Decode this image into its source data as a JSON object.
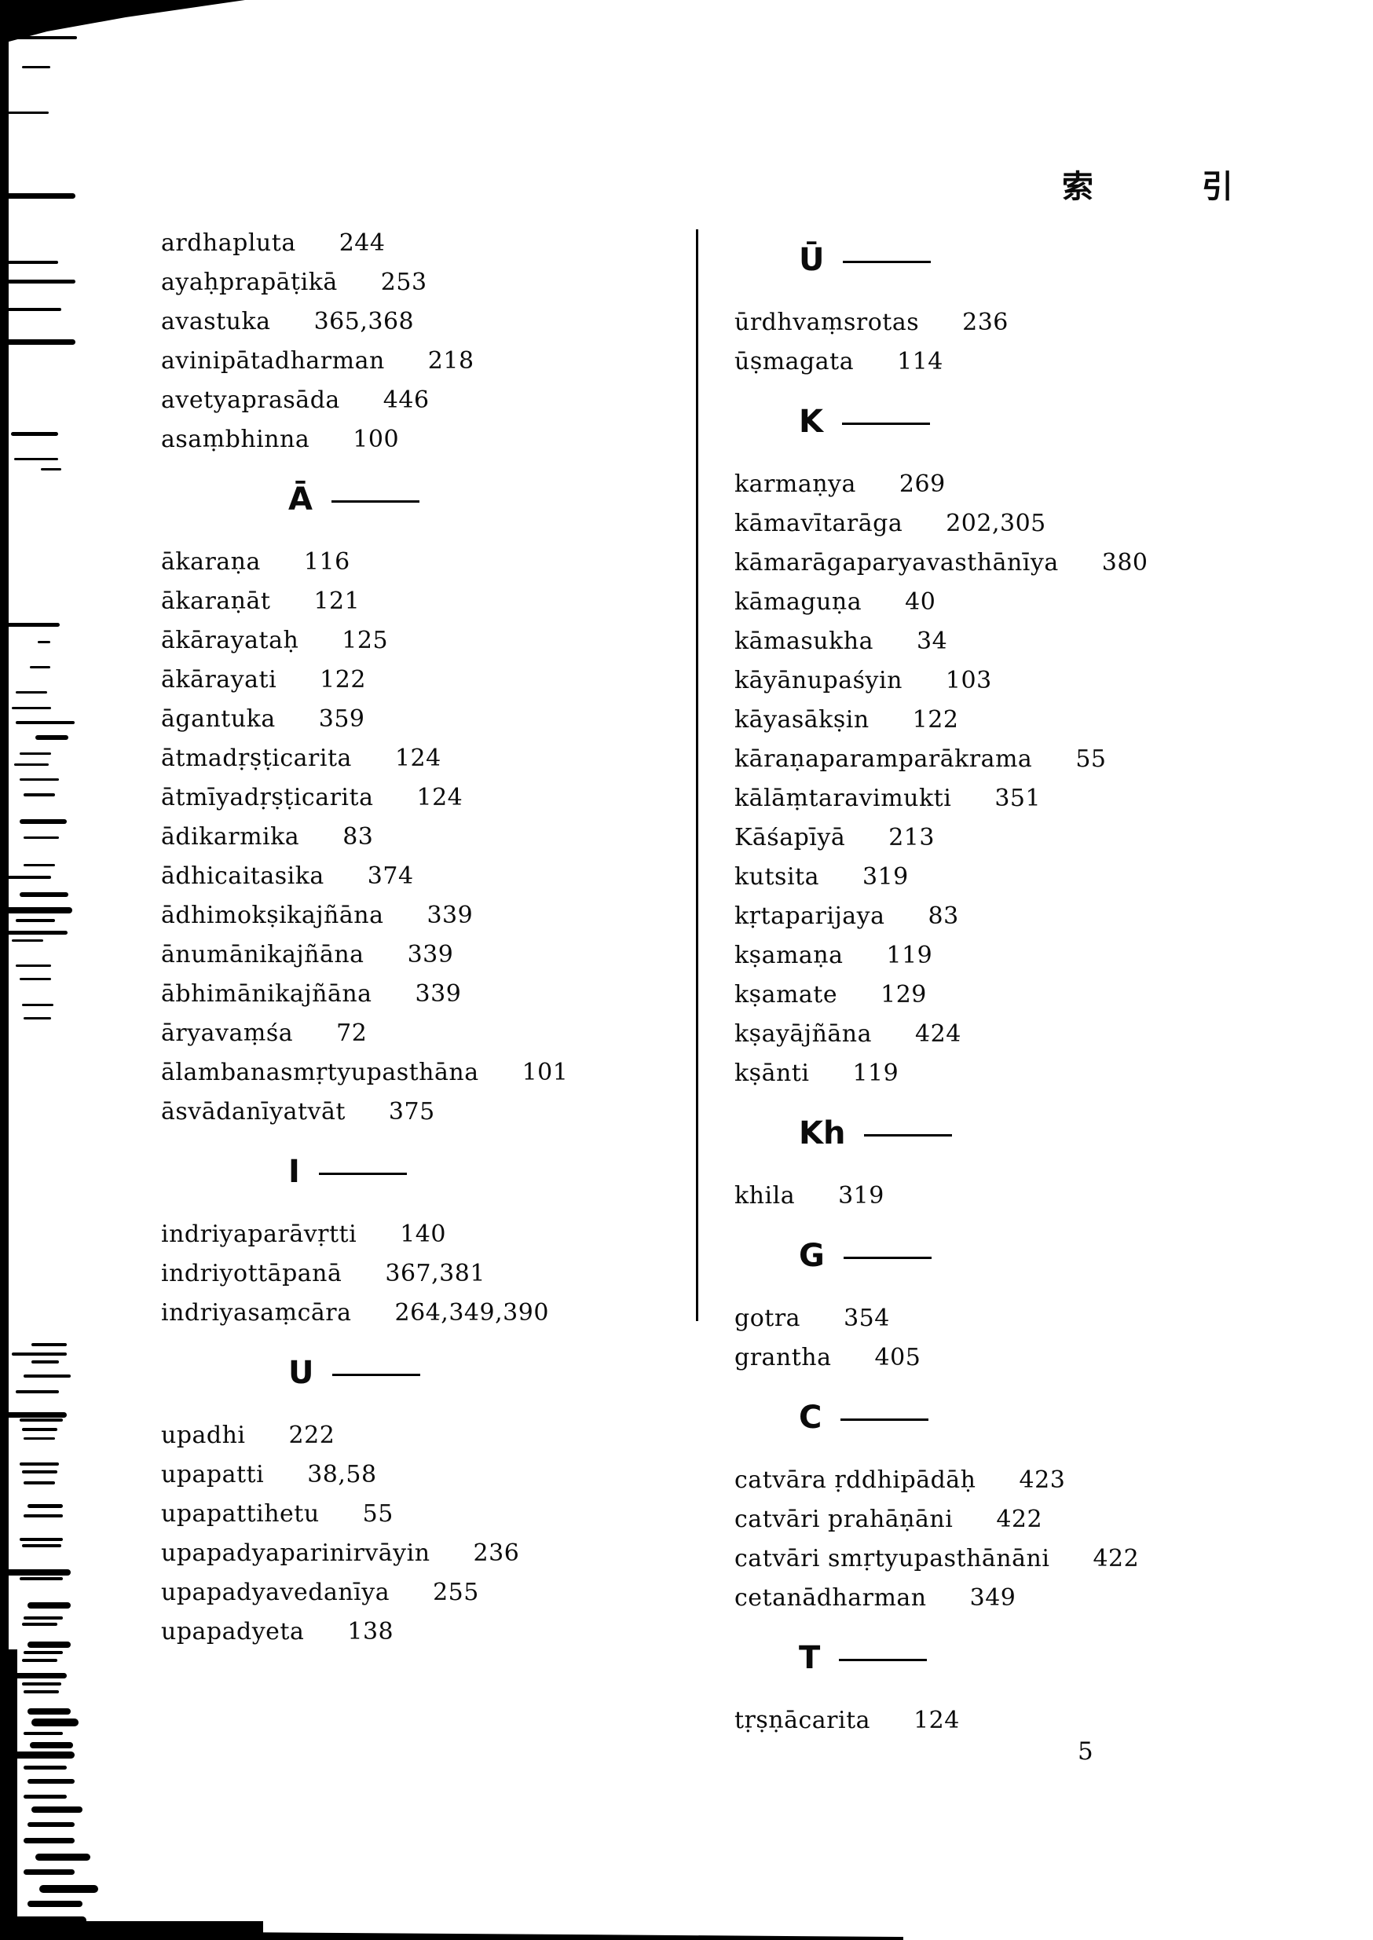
{
  "page": {
    "header_title": "索 引",
    "page_number": "5"
  },
  "index": {
    "left_sections": [
      {
        "letter": "",
        "entries": [
          {
            "term": "ardhapluta",
            "pages": "244"
          },
          {
            "term": "ayaḥprapāṭikā",
            "pages": "253"
          },
          {
            "term": "avastuka",
            "pages": "365,368"
          },
          {
            "term": "avinipātadharman",
            "pages": "218"
          },
          {
            "term": "avetyaprasāda",
            "pages": "446"
          },
          {
            "term": "asaṃbhinna",
            "pages": "100"
          }
        ]
      },
      {
        "letter": "Ā",
        "entries": [
          {
            "term": "ākaraṇa",
            "pages": "116"
          },
          {
            "term": "ākaraṇāt",
            "pages": "121"
          },
          {
            "term": "ākārayataḥ",
            "pages": "125"
          },
          {
            "term": "ākārayati",
            "pages": "122"
          },
          {
            "term": "āgantuka",
            "pages": "359"
          },
          {
            "term": "ātmadṛṣṭicarita",
            "pages": "124"
          },
          {
            "term": "ātmīyadṛṣṭicarita",
            "pages": "124"
          },
          {
            "term": "ādikarmika",
            "pages": "83"
          },
          {
            "term": "ādhicaitasika",
            "pages": "374"
          },
          {
            "term": "ādhimokṣikajñāna",
            "pages": "339"
          },
          {
            "term": "ānumānikajñāna",
            "pages": "339"
          },
          {
            "term": "ābhimānikajñāna",
            "pages": "339"
          },
          {
            "term": "āryavaṃśa",
            "pages": "72"
          },
          {
            "term": "ālambanasmṛtyupasthāna",
            "pages": "101"
          },
          {
            "term": "āsvādanīyatvāt",
            "pages": "375"
          }
        ]
      },
      {
        "letter": "I",
        "entries": [
          {
            "term": "indriyaparāvṛtti",
            "pages": "140"
          },
          {
            "term": "indriyottāpanā",
            "pages": "367,381"
          },
          {
            "term": "indriyasaṃcāra",
            "pages": "264,349,390"
          }
        ]
      },
      {
        "letter": "U",
        "entries": [
          {
            "term": "upadhi",
            "pages": "222"
          },
          {
            "term": "upapatti",
            "pages": "38,58"
          },
          {
            "term": "upapattihetu",
            "pages": "55"
          },
          {
            "term": "upapadyaparinirvāyin",
            "pages": "236"
          },
          {
            "term": "upapadyavedanīya",
            "pages": "255"
          },
          {
            "term": "upapadyeta",
            "pages": "138"
          }
        ]
      }
    ],
    "right_sections": [
      {
        "letter": "Ū",
        "entries": [
          {
            "term": "ūrdhvaṃsrotas",
            "pages": "236"
          },
          {
            "term": "ūṣmagata",
            "pages": "114"
          }
        ]
      },
      {
        "letter": "K",
        "entries": [
          {
            "term": "karmaṇya",
            "pages": "269"
          },
          {
            "term": "kāmavītarāga",
            "pages": "202,305"
          },
          {
            "term": "kāmarāgaparyavasthānīya",
            "pages": "380"
          },
          {
            "term": "kāmaguṇa",
            "pages": "40"
          },
          {
            "term": "kāmasukha",
            "pages": "34"
          },
          {
            "term": "kāyānupaśyin",
            "pages": "103"
          },
          {
            "term": "kāyasākṣin",
            "pages": "122"
          },
          {
            "term": "kāraṇaparamparākrama",
            "pages": "55"
          },
          {
            "term": "kālāṃtaravimukti",
            "pages": "351"
          },
          {
            "term": "Kāśapīyā",
            "pages": "213"
          },
          {
            "term": "kutsita",
            "pages": "319"
          },
          {
            "term": "kṛtaparijaya",
            "pages": "83"
          },
          {
            "term": "kṣamaṇa",
            "pages": "119"
          },
          {
            "term": "kṣamate",
            "pages": "129"
          },
          {
            "term": "kṣayājñāna",
            "pages": "424"
          },
          {
            "term": "kṣānti",
            "pages": "119"
          }
        ]
      },
      {
        "letter": "Kh",
        "entries": [
          {
            "term": "khila",
            "pages": "319"
          }
        ]
      },
      {
        "letter": "G",
        "entries": [
          {
            "term": "gotra",
            "pages": "354"
          },
          {
            "term": "grantha",
            "pages": "405"
          }
        ]
      },
      {
        "letter": "C",
        "entries": [
          {
            "term": "catvāra ṛddhipādāḥ",
            "pages": "423"
          },
          {
            "term": "catvāri prahāṇāni",
            "pages": "422"
          },
          {
            "term": "catvāri smṛtyupasthānāni",
            "pages": "422"
          },
          {
            "term": "cetanādharman",
            "pages": "349"
          }
        ]
      },
      {
        "letter": "T",
        "entries": [
          {
            "term": "tṛṣṇācarita",
            "pages": "124"
          }
        ]
      }
    ]
  }
}
